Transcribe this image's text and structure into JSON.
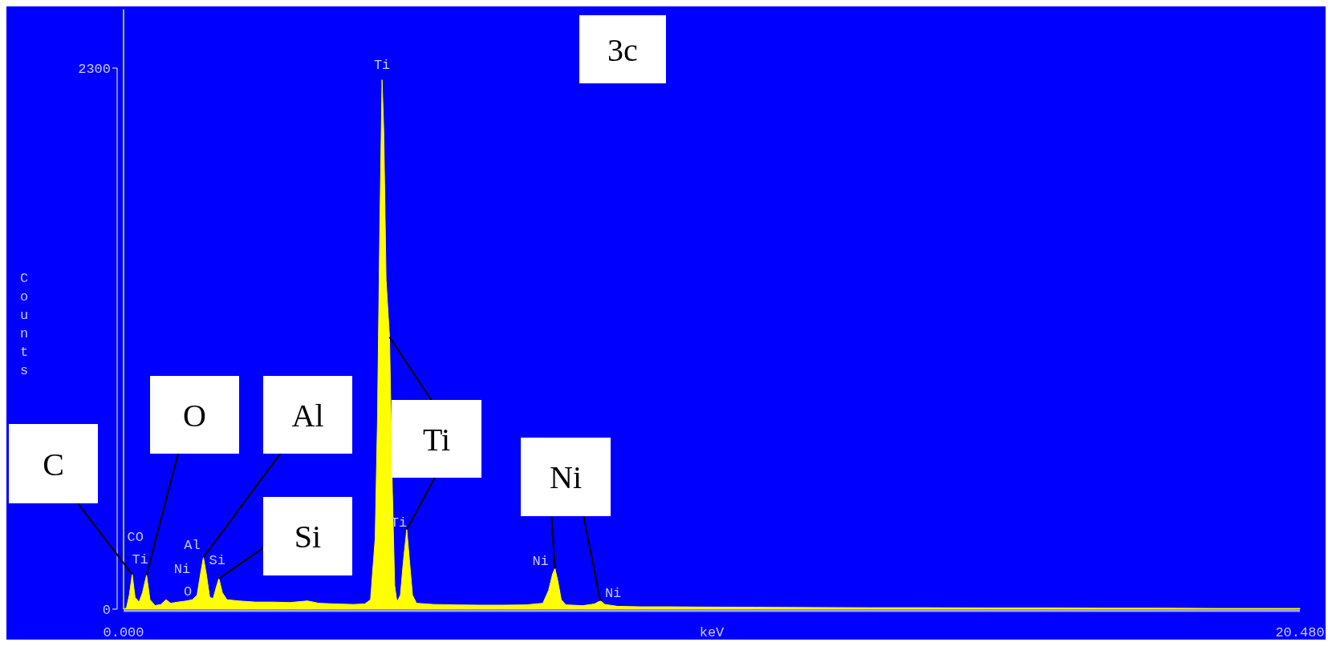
{
  "chart_data": {
    "type": "area",
    "xlabel": "keV",
    "ylabel": "Counts",
    "xlim": [
      0,
      20.48
    ],
    "ylim": [
      0,
      2550
    ],
    "xticks": [
      {
        "value": 0,
        "label": "0.000"
      },
      {
        "value": 20.48,
        "label": "20.480"
      }
    ],
    "yticks": [
      0,
      2300
    ],
    "x": [
      0,
      0.05,
      0.1,
      0.15,
      0.2,
      0.27,
      0.33,
      0.4,
      0.46,
      0.55,
      0.65,
      0.74,
      0.82,
      0.95,
      1.1,
      1.2,
      1.28,
      1.34,
      1.39,
      1.44,
      1.5,
      1.56,
      1.61,
      1.66,
      1.72,
      1.8,
      2.0,
      2.3,
      2.6,
      2.9,
      3.2,
      3.4,
      3.7,
      4.0,
      4.2,
      4.3,
      4.38,
      4.42,
      4.46,
      4.5,
      4.53,
      4.57,
      4.63,
      4.68,
      4.72,
      4.76,
      4.82,
      4.87,
      4.93,
      4.98,
      5.03,
      5.1,
      5.4,
      5.8,
      6.2,
      6.6,
      7.0,
      7.3,
      7.4,
      7.47,
      7.51,
      7.56,
      7.62,
      7.7,
      8.0,
      8.2,
      8.3,
      8.38,
      8.6,
      9.0,
      9.5,
      10,
      11,
      12,
      13,
      14,
      15,
      16,
      17,
      18,
      19,
      20,
      20.48
    ],
    "series": [
      {
        "color": "#ffff00",
        "values": [
          0,
          5,
          60,
          148,
          50,
          30,
          70,
          145,
          40,
          15,
          20,
          40,
          25,
          30,
          35,
          40,
          60,
          150,
          220,
          150,
          50,
          45,
          90,
          130,
          70,
          40,
          35,
          30,
          30,
          28,
          35,
          25,
          22,
          20,
          22,
          40,
          300,
          800,
          1600,
          2250,
          2030,
          1400,
          1157,
          500,
          100,
          30,
          60,
          200,
          339,
          200,
          60,
          25,
          20,
          18,
          17,
          17,
          18,
          25,
          80,
          150,
          173,
          120,
          40,
          18,
          15,
          22,
          36,
          20,
          12,
          10,
          10,
          9,
          8,
          7,
          6,
          6,
          5,
          5,
          4,
          4,
          3,
          3,
          3
        ]
      }
    ],
    "annotations": [
      "3c",
      {
        "text": "CO",
        "x": 0.15,
        "y": 148
      },
      {
        "text": "Ti",
        "x": 0.4,
        "y": 145
      },
      {
        "text": "Ni",
        "x": 0.74,
        "y": 40
      },
      {
        "text": "O",
        "x": 0.95,
        "y": 30
      },
      {
        "text": "Al",
        "x": 1.39,
        "y": 220
      },
      {
        "text": "Si",
        "x": 1.66,
        "y": 130
      },
      {
        "text": "Ti",
        "x": 4.5,
        "y": 2250
      },
      {
        "text": "Ti",
        "x": 4.93,
        "y": 339
      },
      {
        "text": "Ni",
        "x": 7.51,
        "y": 173
      },
      {
        "text": "Ni",
        "x": 8.3,
        "y": 36
      },
      {
        "text": "C",
        "x": 0.15,
        "y": 148
      },
      {
        "text": "O",
        "x": 0.4,
        "y": 145
      },
      {
        "text": "Al",
        "x": 1.39,
        "y": 220
      },
      {
        "text": "Si",
        "x": 1.66,
        "y": 130
      },
      {
        "text": "Ti",
        "x": 4.63,
        "y": 1157
      },
      {
        "text": "Ni",
        "x": 7.51,
        "y": 173
      }
    ]
  }
}
